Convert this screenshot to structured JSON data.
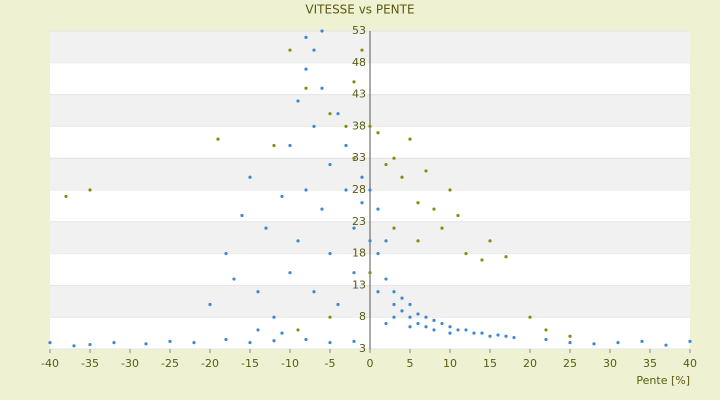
{
  "chart_data": {
    "type": "scatter",
    "title": "VITESSE vs PENTE",
    "x_label": "Pente [%]",
    "xlim": [
      -40,
      40
    ],
    "xticks": [
      -40,
      -35,
      -30,
      -25,
      -20,
      -15,
      -10,
      -5,
      0,
      5,
      10,
      15,
      20,
      25,
      30,
      35,
      40
    ],
    "ylim": [
      3,
      53
    ],
    "yticks": [
      3,
      8,
      13,
      18,
      23,
      28,
      33,
      38,
      43,
      48,
      53
    ],
    "series": [
      {
        "color": "#3a8ad6",
        "x": [
          -40,
          -37,
          -35,
          -32,
          -28,
          -25,
          -22,
          -18,
          -15,
          -12,
          -8,
          -5,
          -2,
          22,
          25,
          28,
          31,
          34,
          37,
          40,
          -18,
          -16,
          -15,
          -14,
          -13,
          -12,
          -11,
          -10,
          -10,
          -9,
          -9,
          -8,
          -8,
          -7,
          -7,
          -7,
          -6,
          -6,
          -5,
          -5,
          -4,
          -4,
          -3,
          -3,
          -2,
          -2,
          -1,
          -1,
          0,
          0,
          -20,
          -17,
          -14,
          -11,
          -8,
          -6,
          1,
          1,
          2,
          2,
          3,
          3,
          4,
          4,
          5,
          5,
          6,
          6,
          7,
          7,
          8,
          8,
          9,
          10,
          11,
          12,
          13,
          14,
          15,
          16,
          17,
          18,
          3,
          5,
          10,
          2,
          1
        ],
        "values": [
          4,
          3.5,
          3.7,
          4,
          3.8,
          4.2,
          4,
          4.5,
          4,
          4.3,
          4.5,
          4,
          4.2,
          4.5,
          4,
          3.8,
          4,
          4.2,
          3.6,
          4.2,
          18,
          24,
          30,
          12,
          22,
          8,
          27,
          15,
          35,
          20,
          42,
          28,
          47,
          12,
          38,
          50,
          25,
          44,
          32,
          18,
          40,
          10,
          28,
          35,
          22,
          15,
          30,
          26,
          28,
          20,
          10,
          14,
          6,
          5.5,
          52,
          53,
          25,
          18,
          14,
          20,
          12,
          10,
          9,
          11,
          8,
          10,
          8.5,
          7,
          8,
          6.5,
          7.5,
          6,
          7,
          6.5,
          6,
          6,
          5.5,
          5.5,
          5,
          5.2,
          5,
          4.8,
          8,
          6.5,
          5.5,
          7,
          12
        ]
      },
      {
        "color": "#8a8a12",
        "x": [
          -38,
          -35,
          -19,
          -12,
          -10,
          -8,
          -5,
          -3,
          -2,
          0,
          1,
          2,
          3,
          4,
          5,
          6,
          7,
          8,
          9,
          10,
          11,
          12,
          14,
          15,
          17,
          -5,
          -9,
          20,
          22,
          25,
          0,
          3,
          6,
          -2,
          -1
        ],
        "values": [
          27,
          28,
          36,
          35,
          50,
          44,
          40,
          38,
          45,
          38,
          37,
          32,
          33,
          30,
          36,
          26,
          31,
          25,
          22,
          28,
          24,
          18,
          17,
          20,
          17.5,
          8,
          6,
          8,
          6,
          5,
          15,
          22,
          20,
          33,
          50
        ]
      }
    ]
  }
}
